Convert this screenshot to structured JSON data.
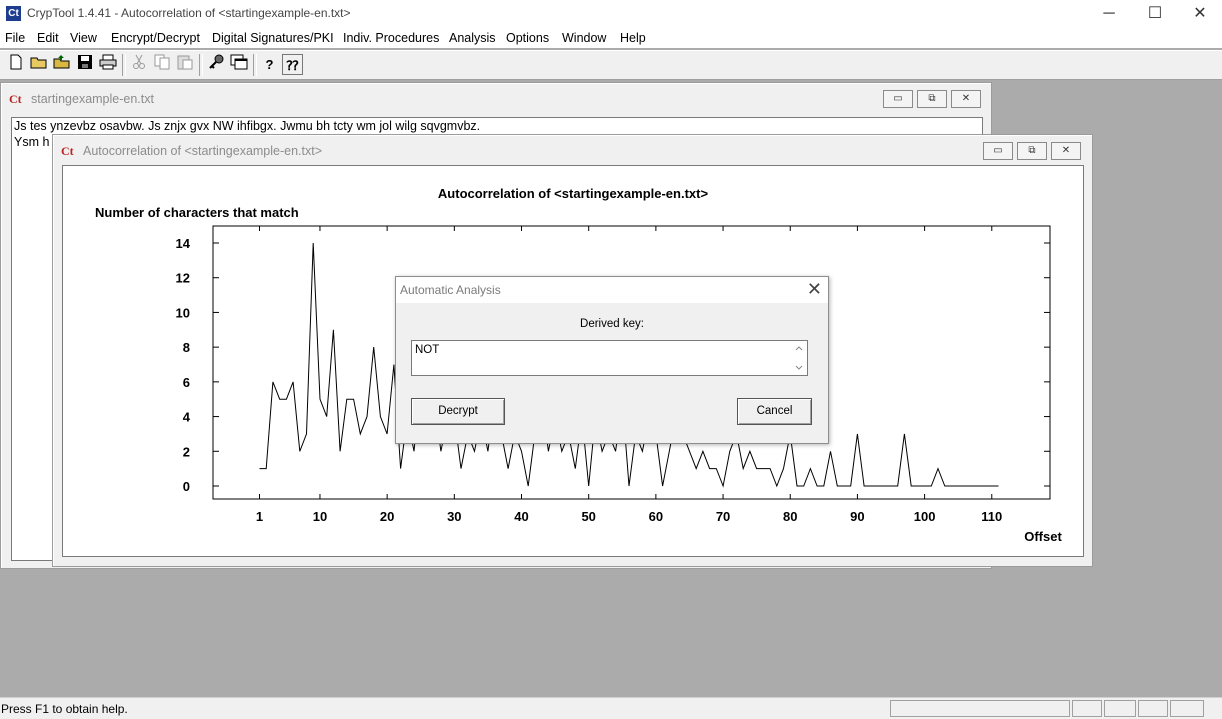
{
  "app": {
    "title": "CrypTool 1.4.41 - Autocorrelation of <startingexample-en.txt>",
    "icon_glyph": "Ct",
    "win_min": "─",
    "win_max": "☐",
    "win_close": "✕"
  },
  "menu": [
    "File",
    "Edit",
    "View",
    "Encrypt/Decrypt",
    "Digital Signatures/PKI",
    "Indiv. Procedures",
    "Analysis",
    "Options",
    "Window",
    "Help"
  ],
  "toolbar": {
    "icons": [
      "new-icon",
      "open-icon",
      "open-folder-icon",
      "save-icon",
      "print-icon",
      "cut-icon",
      "copy-icon",
      "paste-icon",
      "key-icon",
      "window-icon",
      "help-icon",
      "context-help-icon"
    ],
    "help_glyph": "?",
    "context_help_glyph": "⁇"
  },
  "text_window": {
    "title": "startingexample-en.txt",
    "line1": "Js tes ynzevbz osavbw. Js znjx gvx NW ihfibgx. Jwmu bh tcty wm jol wilg sqvgmvbz.",
    "line2": "Ysm h"
  },
  "chart_window": {
    "title": "Autocorrelation of <startingexample-en.txt>"
  },
  "chart_data": {
    "type": "line",
    "title": "Autocorrelation of <startingexample-en.txt>",
    "ylabel": "Number of characters that match",
    "xlabel": "Offset",
    "x_ticks": [
      1,
      10,
      20,
      30,
      40,
      50,
      60,
      70,
      80,
      90,
      100,
      110
    ],
    "y_ticks": [
      0,
      2,
      4,
      6,
      8,
      10,
      12,
      14
    ],
    "xlim": [
      1,
      111
    ],
    "ylim": [
      0,
      14
    ],
    "x": [
      1,
      2,
      3,
      4,
      5,
      6,
      7,
      8,
      9,
      10,
      11,
      12,
      13,
      14,
      15,
      16,
      17,
      18,
      19,
      20,
      21,
      22,
      23,
      24,
      25,
      26,
      27,
      28,
      29,
      30,
      31,
      32,
      33,
      34,
      35,
      36,
      37,
      38,
      39,
      40,
      41,
      42,
      43,
      44,
      45,
      46,
      47,
      48,
      49,
      50,
      51,
      52,
      53,
      54,
      55,
      56,
      57,
      58,
      59,
      60,
      61,
      62,
      63,
      64,
      65,
      66,
      67,
      68,
      69,
      70,
      71,
      72,
      73,
      74,
      75,
      76,
      77,
      78,
      79,
      80,
      81,
      82,
      83,
      84,
      85,
      86,
      87,
      88,
      89,
      90,
      91,
      92,
      93,
      94,
      95,
      96,
      97,
      98,
      99,
      100,
      101,
      102,
      103,
      104,
      105,
      106,
      107,
      108,
      109,
      110,
      111
    ],
    "y": [
      1,
      1,
      6,
      5,
      5,
      6,
      2,
      3,
      14,
      5,
      4,
      9,
      2,
      5,
      5,
      3,
      4,
      8,
      4,
      3,
      7,
      1,
      4,
      2,
      6,
      3,
      5,
      2,
      4,
      4,
      1,
      3,
      2,
      4,
      2,
      5,
      3,
      1,
      3,
      2,
      0,
      3,
      5,
      2,
      4,
      2,
      3,
      1,
      4,
      0,
      4,
      2,
      3,
      2,
      5,
      0,
      3,
      2,
      4,
      3,
      0,
      2,
      4,
      3,
      2,
      1,
      2,
      1,
      1,
      0,
      2,
      3,
      1,
      2,
      1,
      1,
      1,
      0,
      1,
      3,
      0,
      0,
      1,
      0,
      0,
      2,
      0,
      0,
      0,
      3,
      0,
      0,
      0,
      0,
      0,
      0,
      3,
      0,
      0,
      0,
      0,
      1,
      0,
      0,
      0,
      0,
      0,
      0,
      0,
      0,
      0
    ]
  },
  "dialog": {
    "title": "Automatic Analysis",
    "label": "Derived key:",
    "field_value": "NOT",
    "decrypt_label": "Decrypt",
    "cancel_label": "Cancel",
    "close_glyph": "✕"
  },
  "status": {
    "text": "Press F1 to obtain help."
  }
}
